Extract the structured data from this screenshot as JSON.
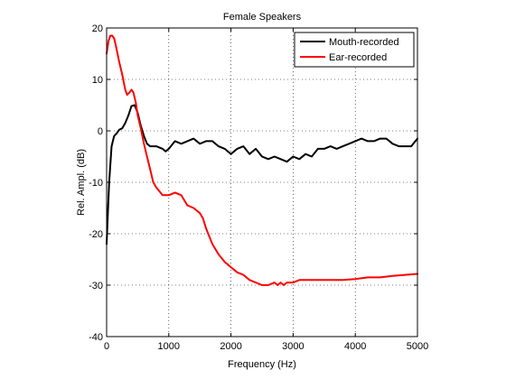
{
  "chart_data": {
    "type": "line",
    "title": "Female Speakers",
    "xlabel": "Frequency (Hz)",
    "ylabel": "Rel. Ampl. (dB)",
    "xlim": [
      0,
      5000
    ],
    "ylim": [
      -40,
      20
    ],
    "xticks": [
      0,
      1000,
      2000,
      3000,
      4000,
      5000
    ],
    "yticks": [
      -40,
      -30,
      -20,
      -10,
      0,
      10,
      20
    ],
    "xtick_labels": [
      "0",
      "1000",
      "2000",
      "3000",
      "4000",
      "5000"
    ],
    "ytick_labels": [
      "-40",
      "-30",
      "-20",
      "-10",
      "0",
      "10",
      "20"
    ],
    "grid": true,
    "legend_position": "top-right",
    "series": [
      {
        "name": "Mouth-recorded",
        "color": "#000000",
        "x": [
          0,
          40,
          80,
          120,
          160,
          200,
          250,
          300,
          350,
          400,
          450,
          500,
          550,
          600,
          650,
          700,
          800,
          900,
          950,
          1000,
          1100,
          1200,
          1300,
          1400,
          1500,
          1600,
          1700,
          1800,
          1900,
          2000,
          2100,
          2200,
          2300,
          2400,
          2500,
          2600,
          2700,
          2800,
          2900,
          3000,
          3100,
          3200,
          3300,
          3400,
          3500,
          3600,
          3700,
          3800,
          3900,
          4000,
          4100,
          4200,
          4300,
          4400,
          4500,
          4600,
          4700,
          4800,
          4900,
          5000
        ],
        "y": [
          -22,
          -10,
          -3,
          -1,
          -0.5,
          0.2,
          0.5,
          1.5,
          3,
          4.8,
          5,
          3.5,
          1,
          -1,
          -2.5,
          -3,
          -3,
          -3.5,
          -4,
          -3.5,
          -2,
          -2.5,
          -2,
          -1.5,
          -2.5,
          -2,
          -2,
          -3,
          -3.5,
          -4.5,
          -3.5,
          -3,
          -4.5,
          -3.5,
          -5,
          -5.5,
          -5,
          -5.5,
          -6,
          -5,
          -5.5,
          -4.5,
          -5,
          -3.5,
          -3.5,
          -3,
          -3.5,
          -3,
          -2.5,
          -2,
          -1.5,
          -2,
          -2,
          -1.5,
          -1.5,
          -2.5,
          -3,
          -3,
          -3,
          -1.5
        ]
      },
      {
        "name": "Ear-recorded",
        "color": "#ff0000",
        "x": [
          0,
          30,
          60,
          90,
          120,
          150,
          200,
          250,
          300,
          330,
          370,
          400,
          430,
          470,
          500,
          550,
          600,
          650,
          700,
          750,
          800,
          900,
          1000,
          1100,
          1200,
          1250,
          1300,
          1400,
          1500,
          1550,
          1600,
          1700,
          1800,
          1900,
          2000,
          2100,
          2200,
          2300,
          2400,
          2500,
          2600,
          2700,
          2750,
          2800,
          2850,
          2900,
          3000,
          3100,
          3200,
          3400,
          3600,
          3800,
          4000,
          4200,
          4400,
          4600,
          4800,
          5000
        ],
        "y": [
          15,
          17.5,
          18.5,
          18.5,
          18,
          16.5,
          13.5,
          11,
          8,
          7,
          7.5,
          8,
          7.5,
          5.5,
          3,
          0.5,
          -2.5,
          -5,
          -7.5,
          -10,
          -11,
          -12.5,
          -12.5,
          -12,
          -12.5,
          -13.5,
          -14.5,
          -15,
          -16,
          -17,
          -19,
          -22,
          -24,
          -25.5,
          -26.5,
          -27.5,
          -28,
          -29,
          -29.5,
          -30,
          -30,
          -29.5,
          -30,
          -29.5,
          -30,
          -29.5,
          -29.5,
          -29,
          -29,
          -29,
          -29,
          -29,
          -28.8,
          -28.5,
          -28.5,
          -28.2,
          -28,
          -27.8
        ]
      }
    ]
  }
}
